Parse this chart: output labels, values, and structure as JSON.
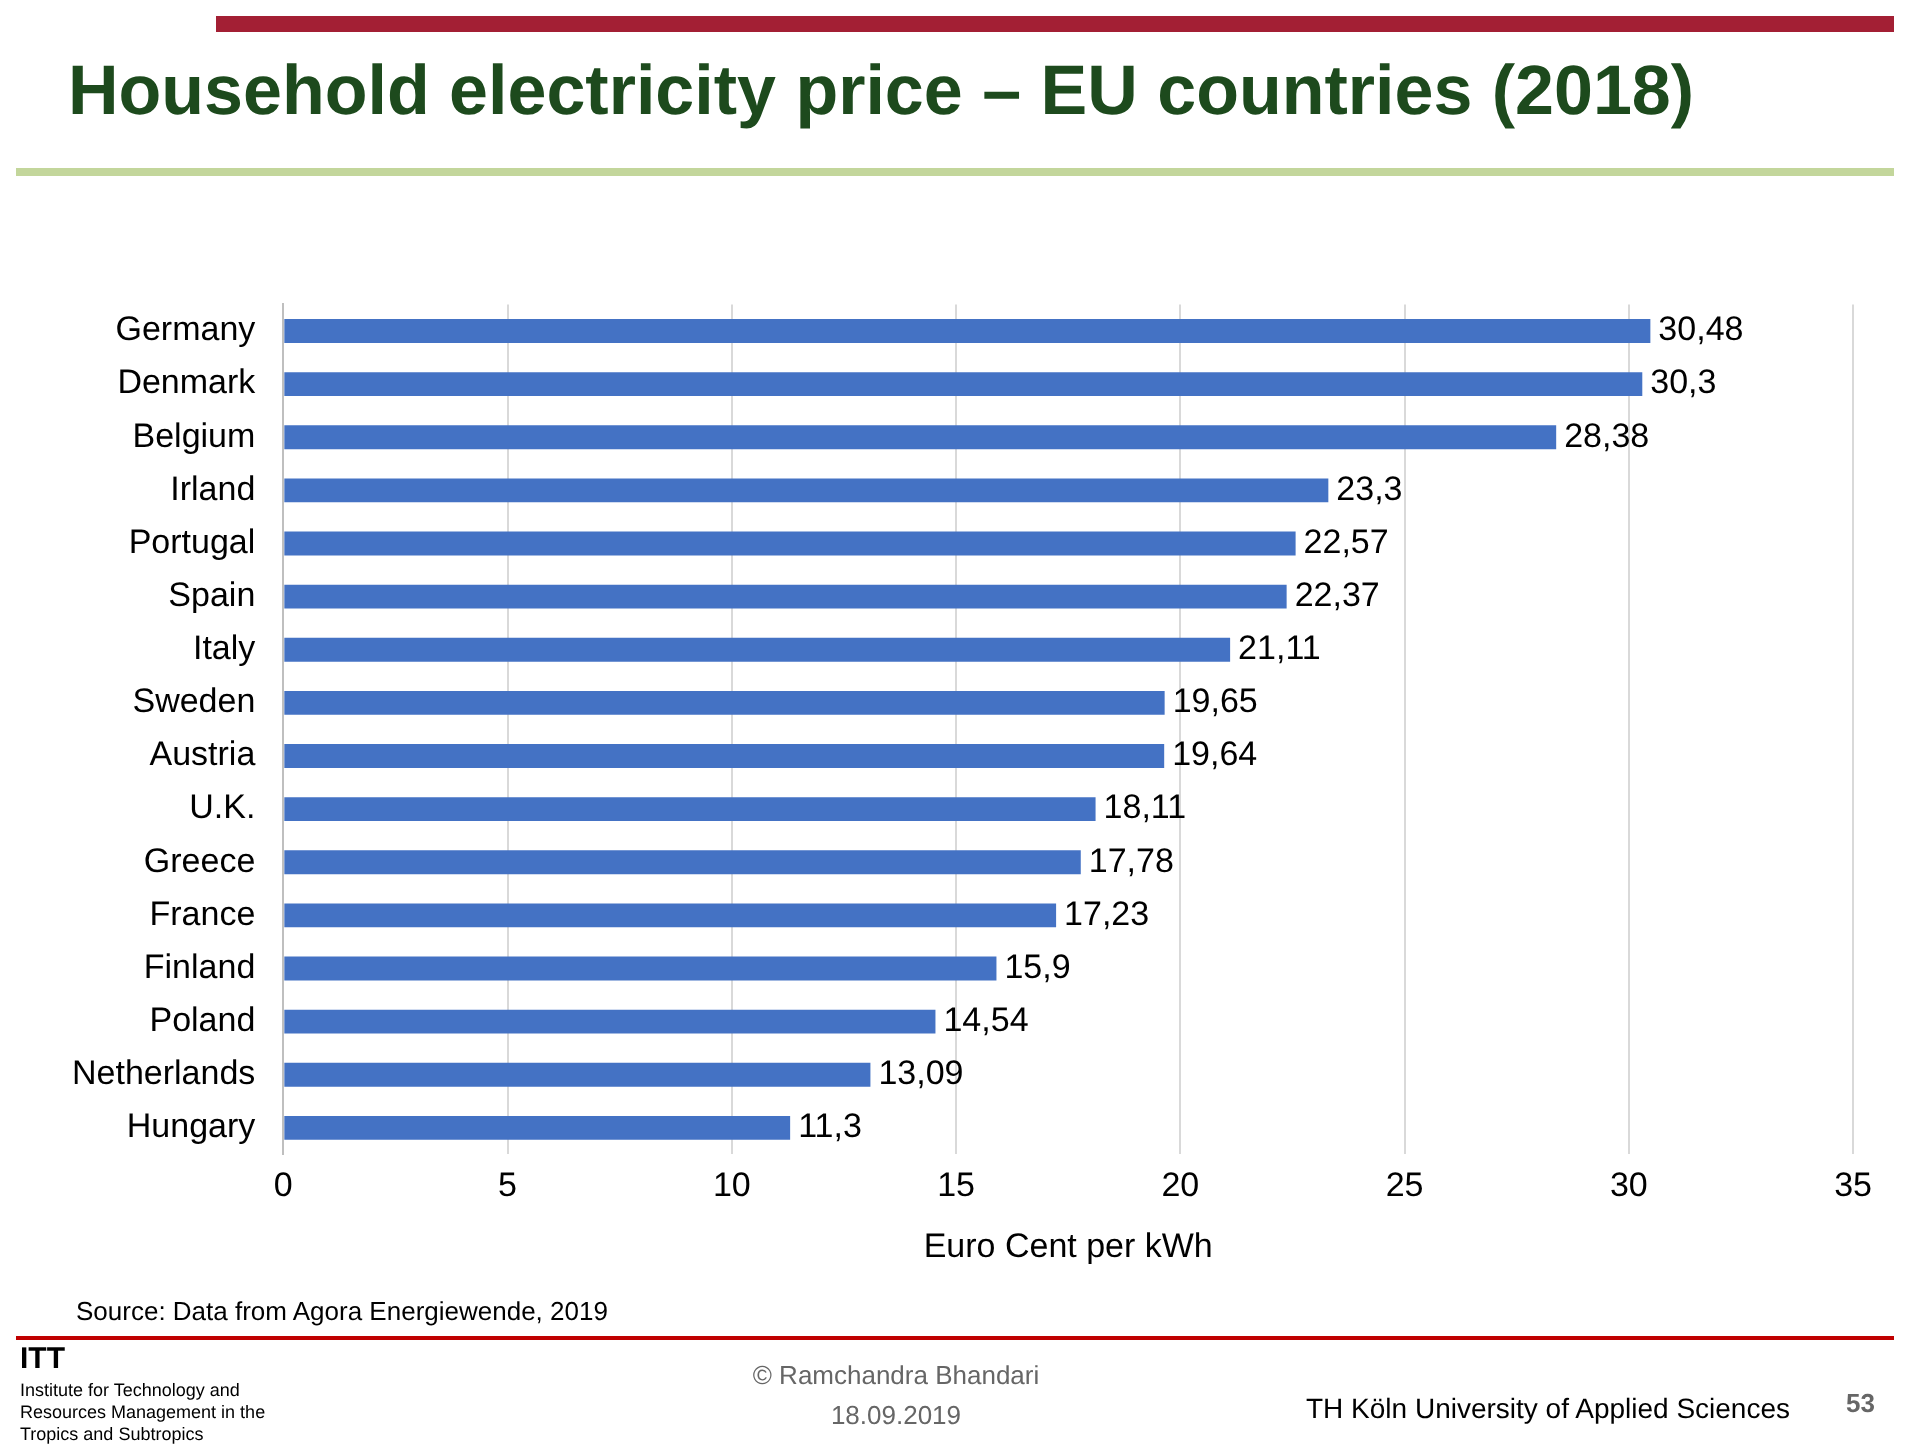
{
  "chart_data": {
    "type": "bar",
    "orientation": "horizontal",
    "title": "Household electricity price – EU countries (2018)",
    "xlabel": "Euro Cent per kWh",
    "categories": [
      "Germany",
      "Denmark",
      "Belgium",
      "Irland",
      "Portugal",
      "Spain",
      "Italy",
      "Sweden",
      "Austria",
      "U.K.",
      "Greece",
      "France",
      "Finland",
      "Poland",
      "Netherlands",
      "Hungary"
    ],
    "values": [
      30.48,
      30.3,
      28.38,
      23.3,
      22.57,
      22.37,
      21.11,
      19.65,
      19.64,
      18.11,
      17.78,
      17.23,
      15.9,
      14.54,
      13.09,
      11.3
    ],
    "value_labels": [
      "30,48",
      "30,3",
      "28,38",
      "23,3",
      "22,57",
      "22,37",
      "21,11",
      "19,65",
      "19,64",
      "18,11",
      "17,78",
      "17,23",
      "15,9",
      "14,54",
      "13,09",
      "11,3"
    ],
    "color": "#4472c4",
    "xlim": [
      0,
      35
    ],
    "xticks": [
      0,
      5,
      10,
      15,
      20,
      25,
      30,
      35
    ],
    "grid": "x",
    "annotations": [
      "Source: Data from Agora Energiewende, 2019",
      "ITT",
      "Institute for Technology and Resources Management in the Tropics and Subtropics",
      "© Ramchandra Bhandari",
      "18.09.2019",
      "TH Köln University of Applied Sciences",
      "53"
    ]
  }
}
